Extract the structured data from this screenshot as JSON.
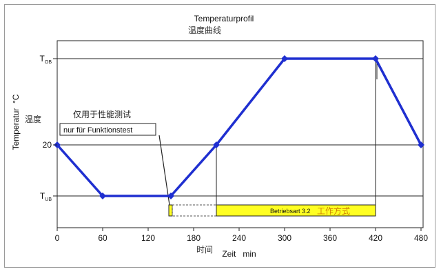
{
  "chart_data": {
    "type": "line",
    "title": "Temperaturprofil",
    "subtitle": "温度曲线",
    "ylabel": "Temperatur  °C",
    "ylabel_cn": "温度",
    "xlabel": "Zeit   min",
    "xlabel_cn": "时间",
    "xlim": [
      0,
      480
    ],
    "x_ticks": [
      "0",
      "60",
      "120",
      "180",
      "240",
      "300",
      "360",
      "420",
      "480"
    ],
    "y_levels": [
      {
        "name": "T_UB",
        "base": "T",
        "sub": "UB"
      },
      {
        "name": "20",
        "base": "20",
        "sub": ""
      },
      {
        "name": "T_OB",
        "base": "T",
        "sub": "OB"
      }
    ],
    "grid": "horizontal",
    "series": [
      {
        "color": "#1f2fd0",
        "points": [
          {
            "x": 0,
            "y": "20"
          },
          {
            "x": 60,
            "y": "T_UB"
          },
          {
            "x": 150,
            "y": "T_UB"
          },
          {
            "x": 210,
            "y": "20"
          },
          {
            "x": 300,
            "y": "T_OB"
          },
          {
            "x": 420,
            "y": "T_OB"
          },
          {
            "x": 480,
            "y": "20"
          }
        ]
      }
    ],
    "annotations": {
      "function_test": {
        "label_cn": "仅用于性能测试",
        "label_de": "nur für Funktionstest",
        "x_start": 150,
        "x_end": 210
      },
      "operating_mode": {
        "label_de": "Betriebsart 3.2",
        "label_cn": "工作方式",
        "x_start": 210,
        "x_end": 420,
        "color": "#ffff22"
      }
    }
  }
}
